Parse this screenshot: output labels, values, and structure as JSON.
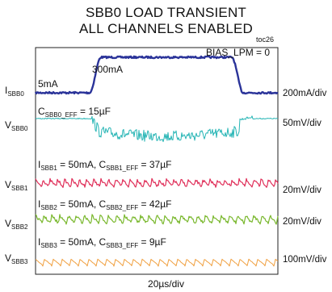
{
  "title_line1": "SBB0 LOAD TRANSIENT",
  "title_line2": "ALL CHANNELS ENABLED",
  "toc": "toc26",
  "chart_data": {
    "type": "line",
    "title": "SBB0 LOAD TRANSIENT ALL CHANNELS ENABLED",
    "xlabel": "20µs/div",
    "grid": false,
    "annotations": {
      "bias": "BIAS_LPM = 0",
      "low_current": "5mA",
      "high_current": "300mA",
      "cap0": "C",
      "cap0_sub": "SBB0_EFF",
      "cap0_val": " = 15µF",
      "l1_a": "I",
      "l1_sub": "SBB1",
      "l1_b": " = 50mA, C",
      "l1_sub2": "SBB1_EFF",
      "l1_c": " = 37µF",
      "l2_a": "I",
      "l2_sub": "SBB2",
      "l2_b": " = 50mA, C",
      "l2_sub2": "SBB2_EFF",
      "l2_c": " = 42µF",
      "l3_a": "I",
      "l3_sub": "SBB3",
      "l3_b": " = 50mA, C",
      "l3_sub2": "SBB3_EFF",
      "l3_c": " = 9µF"
    },
    "series": [
      {
        "name_main": "I",
        "name_sub": "SBB0",
        "scale": "200mA/div",
        "color": "#2a3399",
        "low": 5,
        "high": 300,
        "unit": "mA",
        "step_up_div": 2.5,
        "step_down_div": 8.3
      },
      {
        "name_main": "V",
        "name_sub": "SBB0",
        "scale": "50mV/div",
        "color": "#26b5b5"
      },
      {
        "name_main": "V",
        "name_sub": "SBB1",
        "scale": "20mV/div",
        "color": "#e0305a"
      },
      {
        "name_main": "V",
        "name_sub": "SBB2",
        "scale": "20mV/div",
        "color": "#7ab82e"
      },
      {
        "name_main": "V",
        "name_sub": "SBB3",
        "scale": "100mV/div",
        "color": "#f0a040"
      }
    ],
    "x_divisions": 10
  }
}
